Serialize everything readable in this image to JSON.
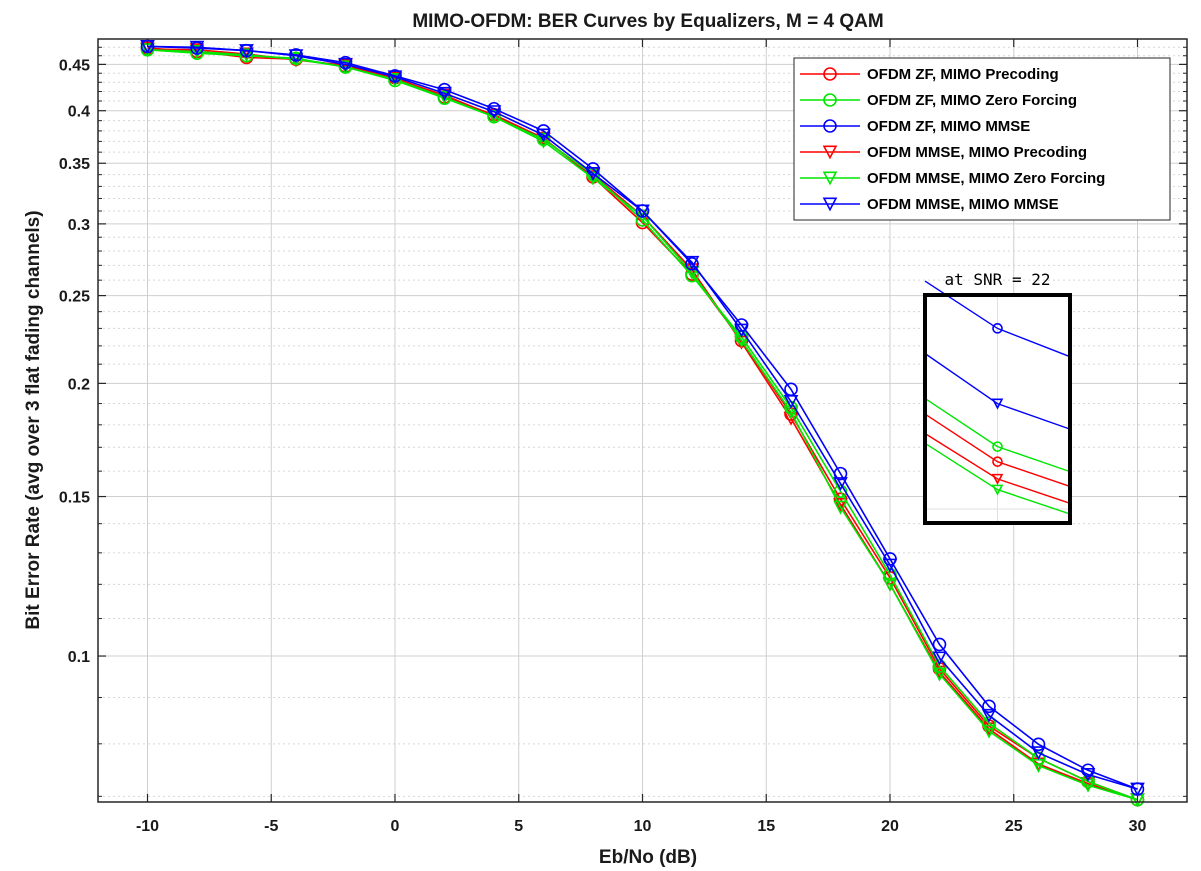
{
  "chart_data": {
    "type": "line",
    "title": "MIMO-OFDM: BER Curves by Equalizers, M = 4 QAM",
    "xlabel": "Eb/No (dB)",
    "ylabel": "Bit Error Rate (avg over 3 flat fading channels)",
    "xlim": [
      -12,
      32
    ],
    "ylim": [
      0.069,
      0.48
    ],
    "yscale": "log",
    "grid": true,
    "minor_grid": true,
    "legend_position": "top-right",
    "xticks": [
      -10,
      -5,
      0,
      5,
      10,
      15,
      20,
      25,
      30
    ],
    "xtick_labels": [
      "-10",
      "-5",
      "0",
      "5",
      "10",
      "15",
      "20",
      "25",
      "30"
    ],
    "yticks": [
      0.1,
      0.15,
      0.2,
      0.25,
      0.3,
      0.35,
      0.4,
      0.45
    ],
    "ytick_labels": [
      "0.1",
      "0.15",
      "0.2",
      "0.25",
      "0.3",
      "0.35",
      "0.4",
      "0.45"
    ],
    "y_minor_ticks": [
      0.07,
      0.08,
      0.09,
      0.11,
      0.12,
      0.13,
      0.14,
      0.16,
      0.17,
      0.18,
      0.19,
      0.21,
      0.22,
      0.23,
      0.24,
      0.26,
      0.27,
      0.28,
      0.29,
      0.31,
      0.32,
      0.33,
      0.34,
      0.36,
      0.37,
      0.38,
      0.39,
      0.41,
      0.42,
      0.43,
      0.44,
      0.46,
      0.47
    ],
    "x": [
      -10,
      -8,
      -6,
      -4,
      -2,
      0,
      2,
      4,
      6,
      8,
      10,
      12,
      14,
      16,
      18,
      20,
      22,
      24,
      26,
      28,
      30
    ],
    "series": [
      {
        "name": "OFDM ZF, MIMO Precoding",
        "color": "#ff0000",
        "marker": "circle",
        "values": [
          0.469,
          0.465,
          0.458,
          0.456,
          0.448,
          0.435,
          0.414,
          0.396,
          0.373,
          0.338,
          0.301,
          0.264,
          0.223,
          0.185,
          0.149,
          0.122,
          0.0968,
          0.0837,
          0.0771,
          0.0727,
          0.0694
        ]
      },
      {
        "name": "OFDM ZF, MIMO Zero Forcing",
        "color": "#00e600",
        "marker": "circle",
        "values": [
          0.467,
          0.463,
          0.46,
          0.457,
          0.447,
          0.432,
          0.413,
          0.394,
          0.372,
          0.34,
          0.303,
          0.263,
          0.225,
          0.188,
          0.152,
          0.123,
          0.0975,
          0.0843,
          0.0771,
          0.0727,
          0.0694
        ]
      },
      {
        "name": "OFDM ZF, MIMO MMSE",
        "color": "#0000ff",
        "marker": "circle",
        "values": [
          0.471,
          0.469,
          0.466,
          0.461,
          0.452,
          0.437,
          0.422,
          0.402,
          0.38,
          0.345,
          0.31,
          0.271,
          0.232,
          0.197,
          0.159,
          0.128,
          0.103,
          0.088,
          0.0799,
          0.0748,
          0.0713
        ]
      },
      {
        "name": "OFDM MMSE, MIMO Precoding",
        "color": "#ff0000",
        "marker": "triangle",
        "values": [
          0.468,
          0.467,
          0.462,
          0.455,
          0.449,
          0.434,
          0.416,
          0.395,
          0.372,
          0.34,
          0.306,
          0.267,
          0.222,
          0.183,
          0.147,
          0.12,
          0.096,
          0.0831,
          0.076,
          0.0723,
          0.0694
        ]
      },
      {
        "name": "OFDM MMSE, MIMO Zero Forcing",
        "color": "#00e600",
        "marker": "triangle",
        "values": [
          0.467,
          0.465,
          0.461,
          0.456,
          0.447,
          0.433,
          0.414,
          0.394,
          0.37,
          0.337,
          0.306,
          0.265,
          0.223,
          0.186,
          0.146,
          0.12,
          0.0955,
          0.0826,
          0.0757,
          0.072,
          0.0694
        ]
      },
      {
        "name": "OFDM MMSE, MIMO MMSE",
        "color": "#0000ff",
        "marker": "triangle",
        "values": [
          0.471,
          0.47,
          0.466,
          0.46,
          0.45,
          0.436,
          0.418,
          0.399,
          0.376,
          0.341,
          0.31,
          0.272,
          0.229,
          0.191,
          0.155,
          0.126,
          0.0995,
          0.086,
          0.0782,
          0.074,
          0.0713
        ]
      }
    ],
    "annotations": [
      {
        "text": "at SNR = 22"
      }
    ]
  }
}
